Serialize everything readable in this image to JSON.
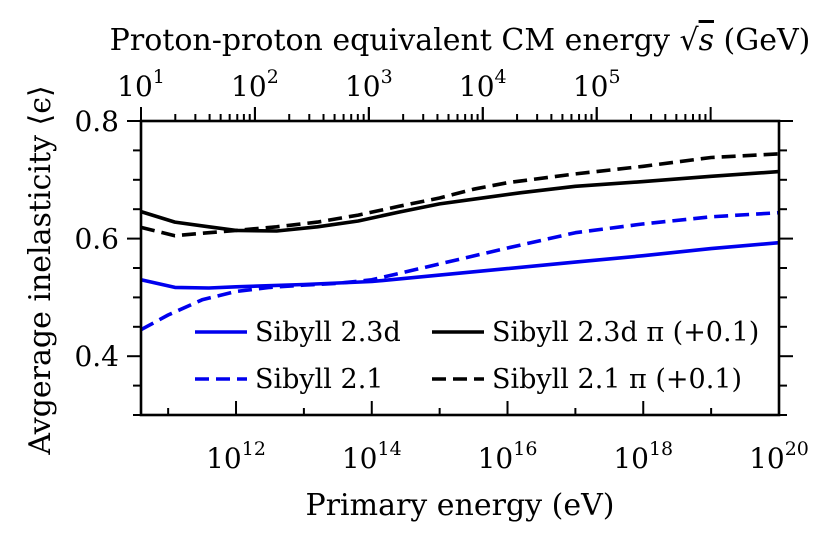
{
  "chart_data": {
    "type": "line",
    "xlabel": "Primary energy (eV)",
    "ylabel": "Avgerage inelasticity ⟨ϵ⟩",
    "top_xlabel": "Proton-proton equivalent CM energy √s (GeV)",
    "top_xlabel_parts": [
      "Proton-proton equivalent CM energy ",
      "√",
      "s",
      " (GeV)"
    ],
    "xscale": "log",
    "xlim_log10": [
      10.6,
      20.0
    ],
    "ylim": [
      0.3,
      0.8
    ],
    "grid": false,
    "x_ticks": [
      {
        "base": "10",
        "exp": "12",
        "value_log10": 12
      },
      {
        "base": "10",
        "exp": "14",
        "value_log10": 14
      },
      {
        "base": "10",
        "exp": "16",
        "value_log10": 16
      },
      {
        "base": "10",
        "exp": "18",
        "value_log10": 18
      },
      {
        "base": "10",
        "exp": "20",
        "value_log10": 20
      }
    ],
    "y_ticks": [
      {
        "label": "0.4",
        "value": 0.4
      },
      {
        "label": "0.6",
        "value": 0.6
      },
      {
        "label": "0.8",
        "value": 0.8
      }
    ],
    "y_minor_ticks": [
      0.3,
      0.35,
      0.45,
      0.5,
      0.55,
      0.65,
      0.7,
      0.75
    ],
    "top_ticks": [
      {
        "base": "10",
        "exp": "1",
        "value_log10_gev": 1
      },
      {
        "base": "10",
        "exp": "2",
        "value_log10_gev": 2
      },
      {
        "base": "10",
        "exp": "3",
        "value_log10_gev": 3
      },
      {
        "base": "10",
        "exp": "4",
        "value_log10_gev": 4
      },
      {
        "base": "10",
        "exp": "5",
        "value_log10_gev": 5
      }
    ],
    "legend_position": "lower-right",
    "series": [
      {
        "name": "Sibyll 2.3d",
        "color": "#0000ee",
        "dash": "solid",
        "x_log10": [
          10.6,
          11.1,
          11.6,
          12.0,
          13.0,
          14.0,
          15.0,
          16.0,
          17.0,
          18.0,
          19.0,
          20.0
        ],
        "y": [
          0.53,
          0.517,
          0.516,
          0.518,
          0.522,
          0.527,
          0.538,
          0.549,
          0.56,
          0.571,
          0.583,
          0.593
        ]
      },
      {
        "name": "Sibyll 2.1",
        "color": "#0000ee",
        "dash": "dashed",
        "x_log10": [
          10.6,
          11.0,
          11.5,
          12.0,
          12.5,
          13.0,
          13.5,
          14.0,
          15.0,
          16.0,
          17.0,
          18.0,
          19.0,
          20.0
        ],
        "y": [
          0.445,
          0.47,
          0.496,
          0.51,
          0.517,
          0.521,
          0.524,
          0.53,
          0.557,
          0.584,
          0.61,
          0.625,
          0.637,
          0.644
        ]
      },
      {
        "name": "Sibyll 2.3d π (+0.1)",
        "color": "#000000",
        "dash": "solid",
        "x_log10": [
          10.6,
          11.1,
          11.6,
          12.0,
          12.6,
          13.2,
          13.8,
          14.4,
          15.0,
          15.5,
          16.2,
          17.0,
          18.0,
          19.0,
          20.0
        ],
        "y": [
          0.646,
          0.628,
          0.62,
          0.614,
          0.613,
          0.62,
          0.63,
          0.645,
          0.659,
          0.667,
          0.678,
          0.689,
          0.697,
          0.706,
          0.714
        ]
      },
      {
        "name": "Sibyll 2.1 π (+0.1)",
        "color": "#000000",
        "dash": "dashed",
        "x_log10": [
          10.6,
          11.1,
          11.6,
          12.0,
          12.6,
          13.2,
          13.8,
          14.4,
          15.0,
          15.5,
          16.0,
          17.0,
          18.0,
          19.0,
          20.0
        ],
        "y": [
          0.619,
          0.605,
          0.61,
          0.614,
          0.62,
          0.628,
          0.64,
          0.655,
          0.669,
          0.684,
          0.695,
          0.71,
          0.723,
          0.738,
          0.744
        ]
      }
    ],
    "legend": [
      {
        "series": 0,
        "label": "Sibyll 2.3d"
      },
      {
        "series": 2,
        "label": "Sibyll 2.3d π (+0.1)"
      },
      {
        "series": 1,
        "label": "Sibyll 2.1"
      },
      {
        "series": 3,
        "label": "Sibyll 2.1 π (+0.1)"
      }
    ]
  }
}
